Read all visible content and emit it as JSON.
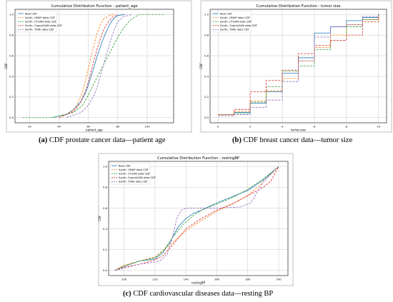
{
  "colors": {
    "real": "#1f77b4",
    "umap": "#ff7f0e",
    "ctgan": "#2ca02c",
    "copulagan": "#d62728",
    "tvae": "#9467bd",
    "axis": "#000000",
    "grid": "#b0b0b0"
  },
  "captions": [
    {
      "letter": "(a)",
      "text": "CDF prostate cancer data—patient age"
    },
    {
      "letter": "(b)",
      "text": "CDF breast cancer data—tumor size"
    },
    {
      "letter": "(c)",
      "text": "CDF cardiovascular diseases data—resting BP"
    }
  ],
  "chart_data": [
    {
      "type": "line",
      "title": "Cumulative Distribution Function - patient_age",
      "xlabel": "patient_age",
      "ylabel": "CDF",
      "xlim": [
        10,
        118
      ],
      "ylim": [
        -0.05,
        1.05
      ],
      "xticks": [
        20,
        40,
        60,
        80,
        100
      ],
      "yticks": [
        0.0,
        0.2,
        0.4,
        0.6,
        0.8,
        1.0
      ],
      "ytick_labels": [
        "0.0",
        "0.2",
        "0.4",
        "0.6",
        "0.8",
        "1.0"
      ],
      "grid": true,
      "legend_position": "top-left",
      "series": [
        {
          "name": "Real CDF",
          "key": "real",
          "style": "solid",
          "x": [
            35,
            45,
            50,
            55,
            58,
            60,
            62,
            64,
            66,
            68,
            70,
            72,
            74,
            76,
            78,
            80,
            85
          ],
          "y": [
            0.0,
            0.03,
            0.08,
            0.16,
            0.24,
            0.32,
            0.41,
            0.5,
            0.6,
            0.68,
            0.76,
            0.83,
            0.89,
            0.94,
            0.97,
            0.99,
            1.0
          ]
        },
        {
          "name": "Synth. UMAP data CDF",
          "key": "umap",
          "style": "dashed",
          "x": [
            40,
            48,
            52,
            56,
            58,
            60,
            62,
            64,
            66,
            68,
            70,
            74,
            78
          ],
          "y": [
            0.0,
            0.05,
            0.12,
            0.25,
            0.36,
            0.48,
            0.6,
            0.72,
            0.82,
            0.9,
            0.95,
            0.99,
            1.0
          ]
        },
        {
          "name": "Synth. CTGAN data CDF",
          "key": "ctgan",
          "style": "dashed",
          "x": [
            15,
            35,
            50,
            56,
            60,
            64,
            68,
            72,
            76,
            80,
            84,
            88,
            92,
            95,
            112
          ],
          "y": [
            0.0,
            0.0,
            0.05,
            0.12,
            0.22,
            0.34,
            0.45,
            0.56,
            0.67,
            0.78,
            0.87,
            0.94,
            0.98,
            1.0,
            1.0
          ]
        },
        {
          "name": "Synth. CopulaGAN data CDF",
          "key": "copulagan",
          "style": "dashed",
          "x": [
            40,
            50,
            54,
            58,
            60,
            62,
            64,
            66,
            68,
            70,
            72,
            76,
            80
          ],
          "y": [
            0.0,
            0.06,
            0.13,
            0.26,
            0.35,
            0.46,
            0.57,
            0.67,
            0.76,
            0.84,
            0.9,
            0.97,
            1.0
          ]
        },
        {
          "name": "Synth. TVAE data CDF",
          "key": "tvae",
          "style": "dashed",
          "x": [
            45,
            55,
            60,
            64,
            66,
            68,
            70,
            72,
            74,
            76,
            78,
            80,
            84,
            90
          ],
          "y": [
            0.0,
            0.05,
            0.12,
            0.22,
            0.3,
            0.4,
            0.5,
            0.6,
            0.7,
            0.79,
            0.87,
            0.93,
            0.98,
            1.0
          ]
        }
      ]
    },
    {
      "type": "line",
      "title": "Cumulative Distribution Function - tumor size",
      "xlabel": "tumor-size",
      "ylabel": "CDF",
      "xlim": [
        -0.5,
        10.5
      ],
      "ylim": [
        -0.05,
        1.05
      ],
      "xticks": [
        0,
        2,
        4,
        6,
        8,
        10
      ],
      "yticks": [
        0.0,
        0.2,
        0.4,
        0.6,
        0.8,
        1.0
      ],
      "ytick_labels": [
        "0.0",
        "0.2",
        "0.4",
        "0.6",
        "0.8",
        "1.0"
      ],
      "grid": true,
      "legend_position": "top-left",
      "series": [
        {
          "name": "Real CDF",
          "key": "real",
          "style": "step",
          "x": [
            0,
            1,
            2,
            3,
            4,
            5,
            6,
            7,
            8,
            9,
            10
          ],
          "y": [
            0.03,
            0.05,
            0.14,
            0.25,
            0.43,
            0.58,
            0.82,
            0.88,
            0.94,
            0.97,
            1.0
          ]
        },
        {
          "name": "Synth. UMAP data CDF",
          "key": "umap",
          "style": "step",
          "x": [
            0,
            1,
            2,
            3,
            4,
            5,
            6,
            7,
            8,
            9,
            10
          ],
          "y": [
            0.03,
            0.06,
            0.16,
            0.26,
            0.38,
            0.55,
            0.68,
            0.8,
            0.9,
            0.95,
            1.0
          ]
        },
        {
          "name": "Synth. CTGAN data CDF",
          "key": "ctgan",
          "style": "step",
          "x": [
            0,
            1,
            2,
            3,
            4,
            5,
            6,
            7,
            8,
            9,
            10
          ],
          "y": [
            0.02,
            0.04,
            0.15,
            0.3,
            0.45,
            0.5,
            0.66,
            0.75,
            0.88,
            0.95,
            1.0
          ]
        },
        {
          "name": "Synth. CopulaGAN data CDF",
          "key": "copulagan",
          "style": "step",
          "x": [
            0,
            1,
            2,
            3,
            4,
            5,
            6,
            7,
            8,
            9,
            10
          ],
          "y": [
            0.02,
            0.08,
            0.25,
            0.36,
            0.46,
            0.62,
            0.7,
            0.75,
            0.8,
            0.93,
            1.0
          ]
        },
        {
          "name": "Synth. TVAE data CDF",
          "key": "tvae",
          "style": "step",
          "x": [
            0,
            1,
            2,
            3,
            4,
            5,
            6,
            7,
            8,
            9,
            10
          ],
          "y": [
            0.02,
            0.03,
            0.1,
            0.17,
            0.35,
            0.55,
            0.78,
            0.88,
            0.9,
            0.98,
            1.0
          ]
        }
      ]
    },
    {
      "type": "line",
      "title": "Cumulative Distribution Function - restingBP",
      "xlabel": "restingBP",
      "ylabel": "CDF",
      "xlim": [
        90,
        206
      ],
      "ylim": [
        -0.05,
        1.05
      ],
      "xticks": [
        100,
        120,
        140,
        160,
        180,
        200
      ],
      "yticks": [
        0.0,
        0.2,
        0.4,
        0.6,
        0.8,
        1.0
      ],
      "ytick_labels": [
        "0.0",
        "0.2",
        "0.4",
        "0.6",
        "0.8",
        "1.0"
      ],
      "grid": true,
      "legend_position": "top-left",
      "series": [
        {
          "name": "Real CDF",
          "key": "real",
          "style": "solid",
          "x": [
            94,
            100,
            110,
            120,
            125,
            130,
            135,
            140,
            145,
            150,
            160,
            170,
            180,
            190,
            200
          ],
          "y": [
            0.0,
            0.04,
            0.09,
            0.11,
            0.17,
            0.28,
            0.42,
            0.5,
            0.55,
            0.58,
            0.65,
            0.71,
            0.77,
            0.87,
            1.0
          ]
        },
        {
          "name": "Synth. UMAP data CDF",
          "key": "umap",
          "style": "dashed",
          "x": [
            94,
            100,
            110,
            120,
            130,
            140,
            150,
            160,
            170,
            180,
            190,
            200
          ],
          "y": [
            0.0,
            0.05,
            0.09,
            0.13,
            0.25,
            0.38,
            0.48,
            0.57,
            0.64,
            0.72,
            0.85,
            1.0
          ]
        },
        {
          "name": "Synth. CTGAN data CDF",
          "key": "ctgan",
          "style": "dashed",
          "x": [
            94,
            100,
            110,
            120,
            126,
            132,
            138,
            145,
            150,
            160,
            170,
            180,
            190,
            200
          ],
          "y": [
            0.0,
            0.04,
            0.09,
            0.12,
            0.2,
            0.33,
            0.44,
            0.53,
            0.58,
            0.64,
            0.7,
            0.78,
            0.88,
            1.0
          ]
        },
        {
          "name": "Synth. CopulaGAN data CDF",
          "key": "copulagan",
          "style": "dashed",
          "x": [
            94,
            100,
            110,
            120,
            125,
            130,
            140,
            150,
            160,
            170,
            180,
            190,
            195,
            200
          ],
          "y": [
            0.0,
            0.03,
            0.06,
            0.1,
            0.14,
            0.22,
            0.4,
            0.5,
            0.58,
            0.64,
            0.72,
            0.8,
            0.86,
            1.0
          ]
        },
        {
          "name": "Synth. TVAE data CDF",
          "key": "tvae",
          "style": "dashed",
          "x": [
            94,
            110,
            120,
            124,
            128,
            131,
            134,
            137,
            140,
            160,
            175,
            182,
            186,
            190,
            195,
            200
          ],
          "y": [
            0.0,
            0.06,
            0.08,
            0.1,
            0.16,
            0.3,
            0.5,
            0.58,
            0.6,
            0.6,
            0.61,
            0.65,
            0.75,
            0.85,
            0.93,
            1.0
          ]
        }
      ]
    }
  ]
}
